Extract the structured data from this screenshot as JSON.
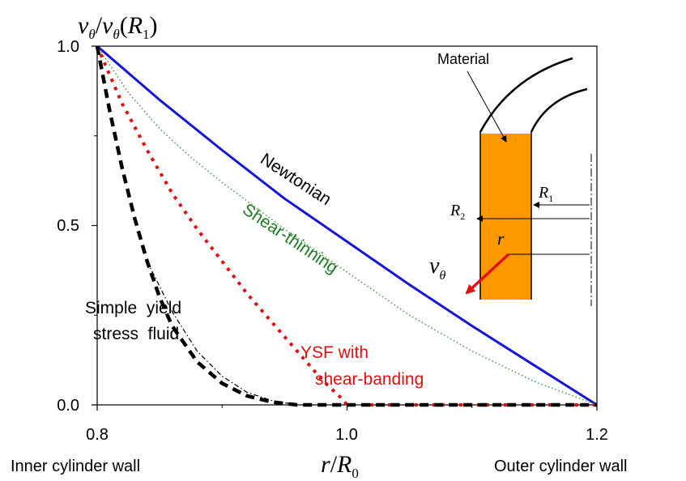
{
  "chart_data": {
    "type": "line",
    "title": "",
    "ylabel": {
      "num": "v",
      "num_sub": "θ",
      "den": "v",
      "den_sub": "θ",
      "den_arg": "R",
      "den_arg_sub": "1"
    },
    "xlabel": {
      "var": "r",
      "den": "R",
      "den_sub": "0"
    },
    "xlim": [
      0.8,
      1.2
    ],
    "ylim": [
      0.0,
      1.0
    ],
    "x_ticks": [
      "0.8",
      "1.0",
      "1.2"
    ],
    "x_tick_values": [
      0.8,
      1.0,
      1.2
    ],
    "y_ticks": [
      "1.0",
      "0.5",
      "0.0"
    ],
    "y_tick_values": [
      1.0,
      0.5,
      0.0
    ],
    "x_end_labels": {
      "left": "Inner cylinder wall",
      "right": "Outer cylinder wall"
    },
    "series": [
      {
        "key": "newtonian",
        "color": "#1515d6",
        "style": "solid",
        "x": [
          0.8,
          0.85,
          0.9,
          0.95,
          1.0,
          1.05,
          1.1,
          1.15,
          1.2
        ],
        "y": [
          1.0,
          0.85,
          0.71,
          0.575,
          0.455,
          0.335,
          0.22,
          0.11,
          0.0
        ]
      },
      {
        "key": "shear_thinning",
        "color": "#3c8c3c",
        "style": "dotted-fine",
        "x": [
          0.8,
          0.825,
          0.85,
          0.875,
          0.9,
          0.95,
          1.0,
          1.05,
          1.1,
          1.15,
          1.2
        ],
        "y": [
          1.0,
          0.87,
          0.77,
          0.69,
          0.62,
          0.49,
          0.37,
          0.25,
          0.15,
          0.065,
          0.0
        ]
      },
      {
        "key": "ysf_shear_banding",
        "color": "#e01010",
        "style": "dotted",
        "x": [
          0.8,
          0.82,
          0.84,
          0.86,
          0.88,
          0.9,
          0.92,
          0.94,
          0.96,
          0.98,
          0.995,
          1.0,
          1.2
        ],
        "y": [
          1.0,
          0.84,
          0.71,
          0.59,
          0.49,
          0.4,
          0.31,
          0.23,
          0.15,
          0.07,
          0.02,
          0.0,
          0.0
        ]
      },
      {
        "key": "simple_ysf",
        "color": "#000000",
        "style": "dashed",
        "x": [
          0.8,
          0.81,
          0.82,
          0.83,
          0.84,
          0.85,
          0.86,
          0.88,
          0.9,
          0.92,
          0.94,
          0.96,
          0.97,
          1.2
        ],
        "y": [
          1.0,
          0.82,
          0.66,
          0.52,
          0.4,
          0.3,
          0.22,
          0.12,
          0.06,
          0.025,
          0.008,
          0.0,
          0.0,
          0.0
        ]
      },
      {
        "key": "simple_ysf_tail",
        "color": "#000000",
        "style": "dashdot-fine",
        "x": [
          0.84,
          0.86,
          0.88,
          0.9,
          0.92,
          0.94,
          0.96
        ],
        "y": [
          0.4,
          0.26,
          0.15,
          0.08,
          0.035,
          0.012,
          0.0
        ]
      }
    ],
    "annotations": {
      "newtonian": "Newtonian",
      "shear_thinning": "Shear-thinning",
      "ysf_line1": "YSF with",
      "ysf_line2": "shear-banding",
      "simple_line1": "Simple  yield",
      "simple_line2": "stress  fluid"
    },
    "annotation_colors": {
      "newtonian": "#000000",
      "shear_thinning": "#1e7a1e",
      "ysf": "#e01010",
      "simple": "#000000"
    },
    "inset": {
      "material_label": "Material",
      "material_color": "#ff9900",
      "r1": {
        "var": "R",
        "sub": "1"
      },
      "r2": {
        "var": "R",
        "sub": "2"
      },
      "r": "r",
      "v": {
        "var": "v",
        "sub": "θ"
      },
      "arrow_color": "#e01010"
    }
  }
}
